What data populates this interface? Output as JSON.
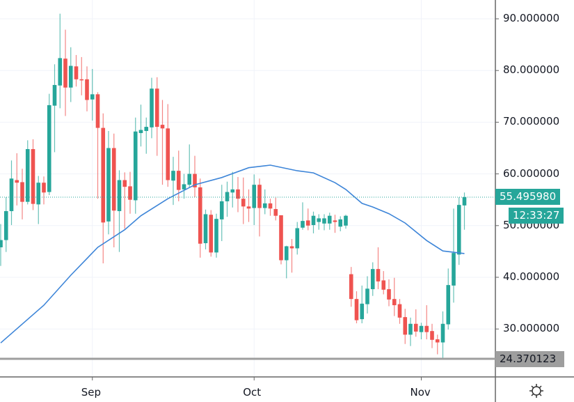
{
  "chart_data": {
    "type": "candlestick",
    "title": "",
    "colors": {
      "up": "#26a69a",
      "down": "#ef5350",
      "moving_average": "#3d85d8",
      "grid": "#f0f3fa",
      "low_line": "#9e9e9e"
    },
    "y_axis": {
      "ylim": [
        21,
        93.5
      ],
      "tick_labels": [
        "90.000000",
        "80.000000",
        "70.000000",
        "60.000000",
        "50.000000",
        "40.000000",
        "30.000000"
      ],
      "ticks": [
        90,
        80,
        70,
        60,
        50,
        40,
        30
      ]
    },
    "x_axis": {
      "tick_labels": [
        "Sep",
        "Oct",
        "Nov"
      ],
      "ticks": [
        "Sep 1",
        "Oct 1",
        "Nov 1"
      ]
    },
    "grid": true,
    "candle_fields": [
      "date",
      "open",
      "high",
      "low",
      "close"
    ],
    "candles": [
      [
        "Aug 15",
        45.8,
        50.3,
        42.2,
        47.2
      ],
      [
        "Aug 16",
        47.2,
        55.5,
        44.9,
        52.8
      ],
      [
        "Aug 17",
        52.8,
        62.6,
        50.1,
        59.1
      ],
      [
        "Aug 18",
        58.8,
        64.0,
        53.9,
        58.3
      ],
      [
        "Aug 19",
        58.4,
        61.0,
        51.2,
        54.6
      ],
      [
        "Aug 20",
        54.6,
        66.5,
        54.1,
        64.8
      ],
      [
        "Aug 21",
        64.8,
        66.7,
        53.0,
        54.2
      ],
      [
        "Aug 22",
        54.1,
        59.6,
        50.3,
        58.3
      ],
      [
        "Aug 23",
        58.3,
        59.5,
        54.1,
        56.4
      ],
      [
        "Aug 24",
        56.5,
        75.5,
        55.9,
        73.3
      ],
      [
        "Aug 25",
        73.2,
        81.2,
        64.2,
        77.2
      ],
      [
        "Aug 26",
        77.1,
        91.0,
        72.7,
        82.4
      ],
      [
        "Aug 27",
        82.3,
        87.9,
        71.2,
        76.7
      ],
      [
        "Aug 28",
        76.7,
        84.5,
        73.9,
        80.9
      ],
      [
        "Aug 29",
        80.8,
        83.0,
        76.9,
        78.3
      ],
      [
        "Aug 30",
        78.3,
        82.6,
        75.2,
        78.2
      ],
      [
        "Aug 31",
        78.3,
        80.8,
        72.1,
        74.3
      ],
      [
        "Sep 1",
        74.4,
        80.3,
        70.3,
        75.4
      ],
      [
        "Sep 2",
        75.4,
        75.8,
        55.2,
        68.9
      ],
      [
        "Sep 3",
        68.9,
        71.7,
        42.7,
        50.6
      ],
      [
        "Sep 4",
        50.8,
        68.3,
        48.3,
        65.0
      ],
      [
        "Sep 5",
        65.0,
        67.8,
        45.8,
        52.9
      ],
      [
        "Sep 6",
        52.8,
        60.7,
        44.9,
        58.8
      ],
      [
        "Sep 7",
        58.8,
        60.3,
        49.4,
        57.5
      ],
      [
        "Sep 8",
        57.6,
        60.4,
        52.3,
        55.0
      ],
      [
        "Sep 9",
        54.9,
        70.9,
        52.3,
        68.2
      ],
      [
        "Sep 10",
        67.9,
        73.4,
        65.3,
        68.5
      ],
      [
        "Sep 11",
        68.3,
        70.9,
        63.9,
        69.1
      ],
      [
        "Sep 12",
        69.0,
        78.6,
        66.9,
        76.5
      ],
      [
        "Sep 13",
        76.5,
        78.7,
        63.5,
        69.1
      ],
      [
        "Sep 14",
        69.5,
        74.3,
        57.9,
        68.8
      ],
      [
        "Sep 15",
        68.8,
        73.5,
        57.5,
        58.8
      ],
      [
        "Sep 16",
        58.7,
        63.3,
        54.0,
        60.6
      ],
      [
        "Sep 17",
        60.6,
        64.5,
        54.7,
        56.9
      ],
      [
        "Sep 18",
        57.0,
        60.0,
        55.2,
        58.0
      ],
      [
        "Sep 19",
        57.9,
        65.7,
        57.3,
        60.0
      ],
      [
        "Sep 20",
        60.0,
        63.5,
        55.5,
        57.4
      ],
      [
        "Sep 21",
        57.4,
        59.1,
        43.8,
        46.5
      ],
      [
        "Sep 22",
        46.6,
        53.1,
        45.4,
        52.2
      ],
      [
        "Sep 23",
        52.1,
        53.0,
        44.0,
        44.8
      ],
      [
        "Sep 24",
        44.8,
        52.3,
        43.8,
        51.3
      ],
      [
        "Sep 25",
        51.2,
        57.9,
        47.0,
        54.7
      ],
      [
        "Sep 26",
        54.7,
        58.5,
        51.7,
        56.5
      ],
      [
        "Sep 27",
        56.4,
        60.4,
        53.5,
        57.0
      ],
      [
        "Sep 28",
        57.0,
        59.4,
        52.6,
        55.2
      ],
      [
        "Sep 29",
        55.2,
        59.3,
        50.3,
        53.7
      ],
      [
        "Sep 30",
        53.7,
        57.0,
        50.7,
        53.3
      ],
      [
        "Oct 1",
        53.4,
        59.9,
        50.1,
        57.9
      ],
      [
        "Oct 2",
        57.9,
        59.1,
        47.9,
        53.4
      ],
      [
        "Oct 3",
        53.4,
        57.0,
        52.2,
        54.3
      ],
      [
        "Oct 4",
        54.3,
        55.2,
        51.9,
        53.3
      ],
      [
        "Oct 5",
        53.2,
        55.4,
        51.0,
        51.9
      ],
      [
        "Oct 6",
        52.0,
        52.0,
        42.5,
        43.3
      ],
      [
        "Oct 7",
        43.3,
        46.1,
        39.8,
        46.0
      ],
      [
        "Oct 8",
        46.0,
        47.4,
        40.9,
        45.6
      ],
      [
        "Oct 9",
        45.6,
        50.7,
        44.4,
        49.5
      ],
      [
        "Oct 10",
        49.6,
        54.5,
        49.2,
        50.9
      ],
      [
        "Oct 11",
        51.0,
        53.3,
        49.1,
        50.0
      ],
      [
        "Oct 12",
        50.1,
        52.7,
        48.5,
        51.9
      ],
      [
        "Oct 13",
        50.7,
        52.2,
        49.2,
        51.4
      ],
      [
        "Oct 14",
        50.4,
        52.2,
        49.1,
        51.4
      ],
      [
        "Oct 15",
        50.4,
        52.5,
        49.2,
        51.9
      ],
      [
        "Oct 16",
        51.0,
        52.1,
        48.6,
        50.7
      ],
      [
        "Oct 17",
        49.8,
        51.8,
        48.9,
        51.2
      ],
      [
        "Oct 18",
        50.0,
        52.1,
        49.4,
        51.9
      ],
      [
        "Oct 19",
        40.6,
        42.0,
        34.3,
        35.8
      ],
      [
        "Oct 20",
        35.8,
        37.3,
        31.1,
        31.7
      ],
      [
        "Oct 21",
        31.9,
        38.4,
        31.1,
        34.9
      ],
      [
        "Oct 22",
        34.8,
        40.2,
        33.0,
        37.8
      ],
      [
        "Oct 23",
        37.7,
        42.9,
        36.4,
        41.6
      ],
      [
        "Oct 24",
        41.6,
        45.8,
        37.7,
        39.2
      ],
      [
        "Oct 25",
        39.4,
        41.2,
        36.7,
        37.6
      ],
      [
        "Oct 26",
        37.7,
        39.6,
        34.4,
        35.7
      ],
      [
        "Oct 27",
        35.8,
        39.9,
        32.5,
        34.6
      ],
      [
        "Oct 28",
        34.8,
        35.8,
        31.0,
        32.2
      ],
      [
        "Oct 29",
        32.3,
        33.9,
        27.1,
        28.9
      ],
      [
        "Oct 30",
        28.9,
        32.2,
        26.7,
        31.0
      ],
      [
        "Oct 31",
        31.0,
        33.8,
        28.5,
        29.5
      ],
      [
        "Nov 1",
        29.4,
        31.2,
        28.0,
        30.6
      ],
      [
        "Nov 2",
        30.6,
        34.6,
        28.0,
        29.4
      ],
      [
        "Nov 3",
        29.6,
        31.0,
        26.3,
        27.9
      ],
      [
        "Nov 4",
        28.0,
        28.9,
        25.1,
        27.4
      ],
      [
        "Nov 5",
        27.4,
        33.4,
        24.4,
        31.0
      ],
      [
        "Nov 6",
        30.9,
        41.7,
        29.9,
        38.5
      ],
      [
        "Nov 7",
        38.4,
        53.3,
        35.1,
        44.7
      ],
      [
        "Nov 8",
        44.4,
        55.5,
        42.4,
        54.0
      ],
      [
        "Nov 9",
        53.9,
        56.4,
        49.2,
        55.5
      ]
    ],
    "moving_average": [
      [
        "Aug 15",
        27.3
      ],
      [
        "Aug 23",
        34.6
      ],
      [
        "Aug 28",
        40.4
      ],
      [
        "Sep 2",
        45.8
      ],
      [
        "Sep 7",
        49.2
      ],
      [
        "Sep 10",
        51.9
      ],
      [
        "Sep 15",
        55.2
      ],
      [
        "Sep 20",
        57.9
      ],
      [
        "Sep 25",
        59.3
      ],
      [
        "Sep 30",
        61.2
      ],
      [
        "Oct 4",
        61.7
      ],
      [
        "Oct 9",
        60.6
      ],
      [
        "Oct 12",
        60.2
      ],
      [
        "Oct 16",
        58.3
      ],
      [
        "Oct 18",
        57.0
      ],
      [
        "Oct 21",
        54.3
      ],
      [
        "Oct 23",
        53.6
      ],
      [
        "Oct 26",
        52.3
      ],
      [
        "Oct 29",
        50.5
      ],
      [
        "Nov 2",
        47.1
      ],
      [
        "Nov 5",
        45.1
      ],
      [
        "Nov 9",
        44.6
      ]
    ],
    "last_price": {
      "value": 55.49598,
      "label": "55.495980",
      "countdown": "12:33:27"
    },
    "low_marker": {
      "value": 24.370123,
      "label": "24.370123"
    }
  },
  "icons": {
    "settings": "gear-icon"
  }
}
